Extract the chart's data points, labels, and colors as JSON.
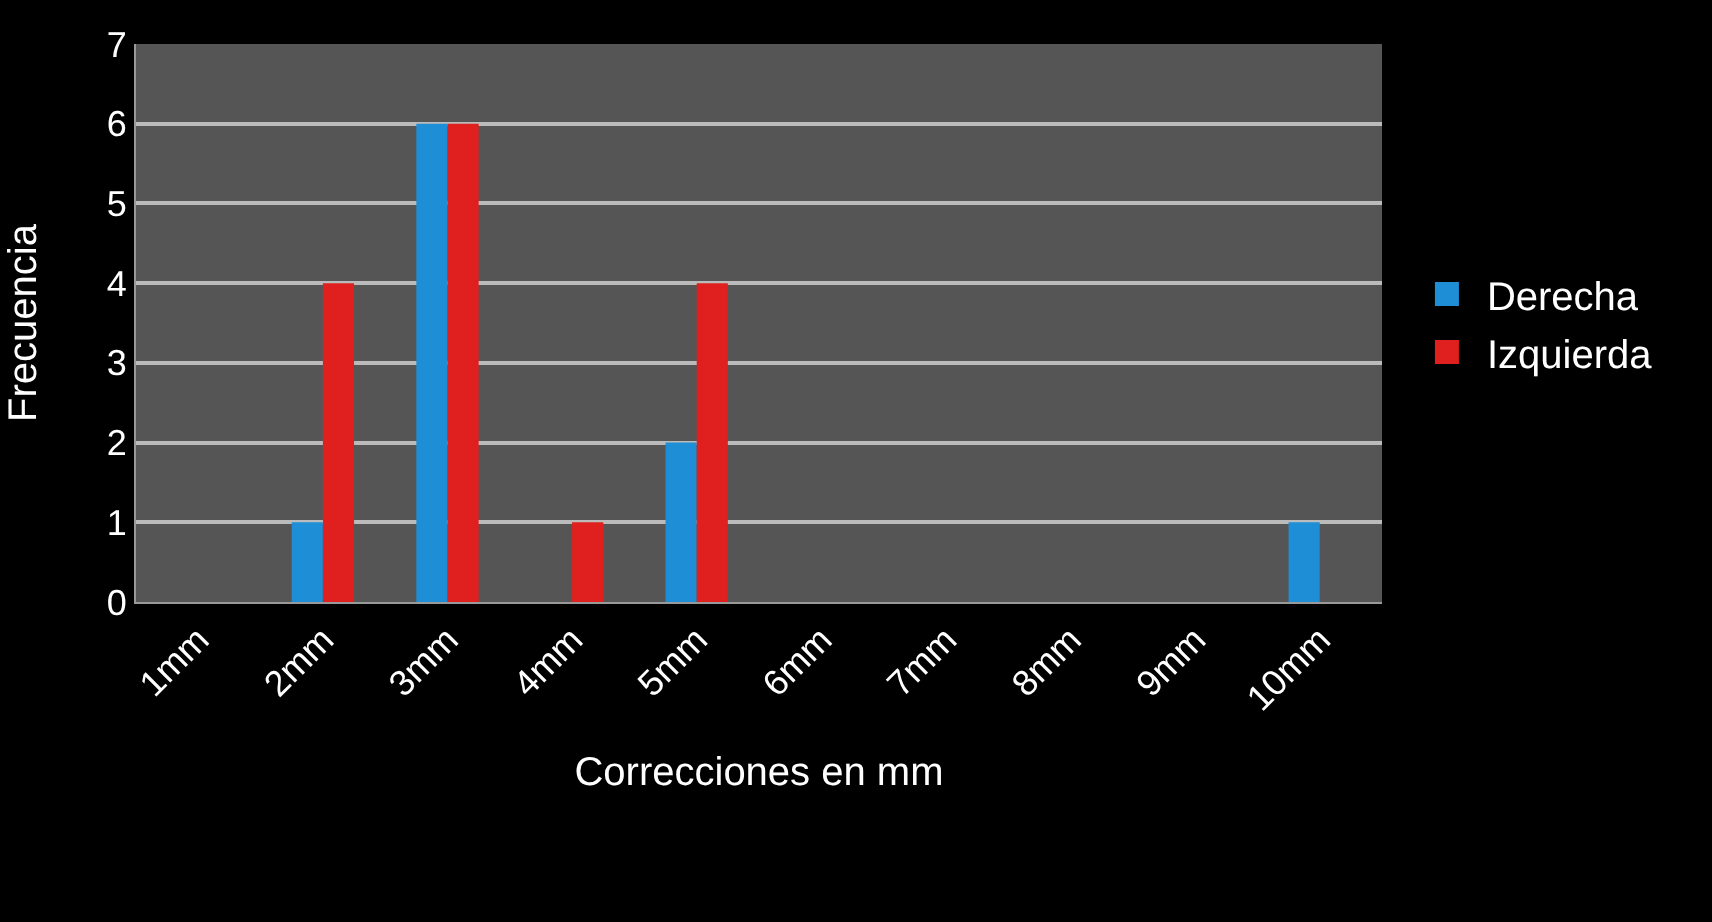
{
  "chart_data": {
    "type": "bar",
    "xlabel": "Correcciones en mm",
    "ylabel": "Frecuencia",
    "categories": [
      "1mm",
      "2mm",
      "3mm",
      "4mm",
      "5mm",
      "6mm",
      "7mm",
      "8mm",
      "9mm",
      "10mm"
    ],
    "series": [
      {
        "name": "Derecha",
        "color": "#1e8fd6",
        "values": [
          0,
          1,
          6,
          0,
          2,
          0,
          0,
          0,
          0,
          1
        ]
      },
      {
        "name": "Izquierda",
        "color": "#e0201e",
        "values": [
          0,
          4,
          6,
          1,
          4,
          0,
          0,
          0,
          0,
          0
        ]
      }
    ],
    "ylim": [
      0,
      7
    ],
    "yticks": [
      0,
      1,
      2,
      3,
      4,
      5,
      6,
      7
    ],
    "grid": "y",
    "legend": "right"
  }
}
